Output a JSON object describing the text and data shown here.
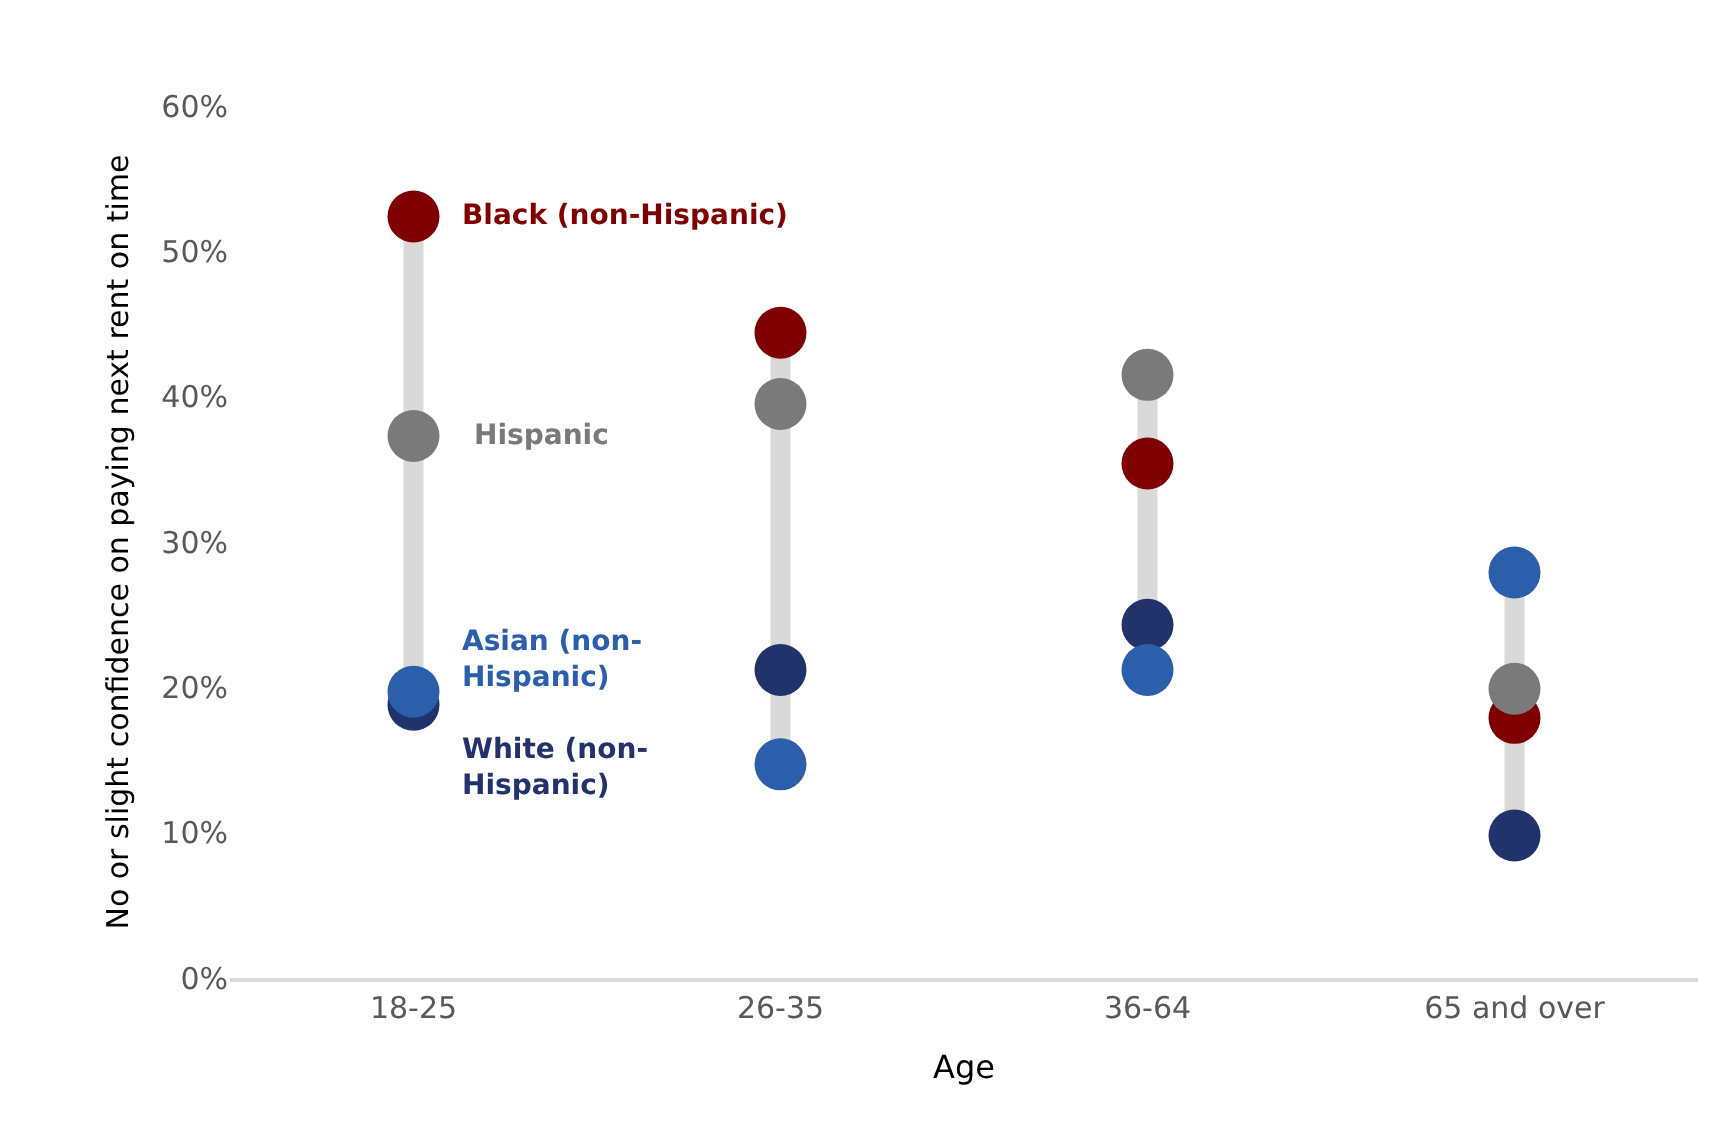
{
  "chart_data": {
    "type": "scatter",
    "xlabel": "Age",
    "ylabel": "No or slight confidence on paying next rent on time",
    "categories": [
      "18-25",
      "26-35",
      "36-64",
      "65 and over"
    ],
    "series": [
      {
        "name": "Black (non-Hispanic)",
        "color": "#7f0000",
        "values": [
          52.4,
          44.4,
          35.4,
          17.9
        ]
      },
      {
        "name": "Hispanic",
        "color": "#7a7a7a",
        "values": [
          37.3,
          39.5,
          41.5,
          19.9
        ]
      },
      {
        "name": "White (non-Hispanic)",
        "color": "#22336b",
        "values": [
          18.8,
          21.2,
          24.3,
          9.8
        ]
      },
      {
        "name": "Asian (non-Hispanic)",
        "color": "#2b5eab",
        "values": [
          19.7,
          14.7,
          21.2,
          27.9
        ]
      }
    ],
    "ylim": [
      0,
      60
    ],
    "yticks": [
      {
        "value": 0,
        "label": "0%"
      },
      {
        "value": 10,
        "label": "10%"
      },
      {
        "value": 20,
        "label": "20%"
      },
      {
        "value": 30,
        "label": "30%"
      },
      {
        "value": 40,
        "label": "40%"
      },
      {
        "value": 50,
        "label": "50%"
      },
      {
        "value": 60,
        "label": "60%"
      }
    ],
    "marker": "circle",
    "legend": false,
    "grid": false
  }
}
